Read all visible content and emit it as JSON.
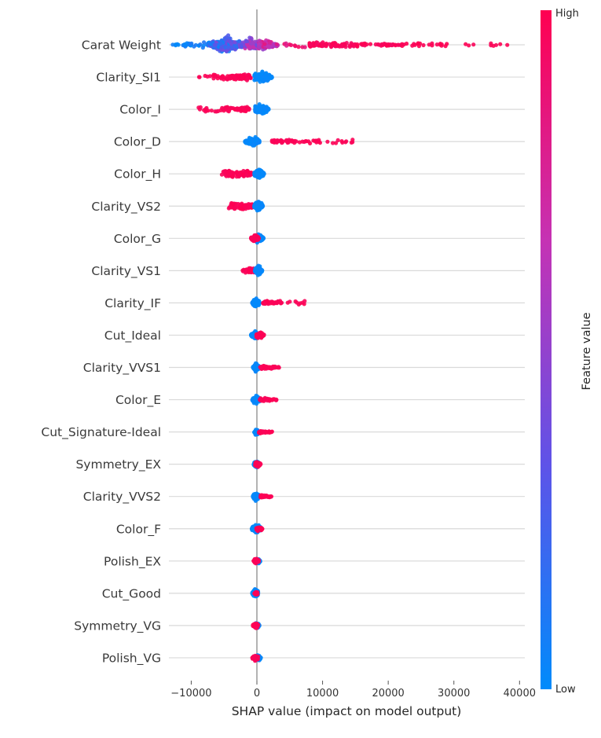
{
  "chart_data": {
    "type": "beeswarm",
    "title": "",
    "xlabel": "SHAP value (impact on model output)",
    "xlim": [
      -13400,
      40800
    ],
    "xticks": [
      {
        "v": -10000,
        "label": "−10000"
      },
      {
        "v": 0,
        "label": "0"
      },
      {
        "v": 10000,
        "label": "10000"
      },
      {
        "v": 20000,
        "label": "20000"
      },
      {
        "v": 30000,
        "label": "30000"
      },
      {
        "v": 40000,
        "label": "40000"
      }
    ],
    "grid": true,
    "legend_position": "right-colorbar",
    "colorbar": {
      "label": "Feature value",
      "high_label": "High",
      "low_label": "Low"
    },
    "colors": {
      "low": "#008bfb",
      "high": "#ff0051",
      "grid": "#d9d9d9",
      "zero_line": "#b3b3b3",
      "text": "#333333",
      "background": "#ffffff"
    },
    "color_stops": [
      [
        0.0,
        "#008bfb"
      ],
      [
        0.33,
        "#5e53e8"
      ],
      [
        0.66,
        "#c532b4"
      ],
      [
        1.0,
        "#ff0051"
      ]
    ],
    "features": [
      {
        "name": "Carat Weight",
        "groups": [
          {
            "x0": -13000,
            "x1": -7000,
            "n": 40,
            "spread": 5,
            "shape": "violin",
            "peak": 0.8,
            "skew": 0.8,
            "t0": 0.0,
            "t1": 0.12
          },
          {
            "x0": -7200,
            "x1": -1800,
            "n": 220,
            "spread": 13,
            "shape": "violin",
            "peak": 0.5,
            "skew": 1,
            "t0": 0.02,
            "t1": 0.45
          },
          {
            "x0": -1800,
            "x1": 500,
            "n": 120,
            "spread": 11,
            "shape": "violin",
            "peak": 0.4,
            "skew": 1,
            "t0": 0.35,
            "t1": 0.7
          },
          {
            "x0": 300,
            "x1": 3200,
            "n": 110,
            "spread": 9,
            "shape": "violin",
            "peak": 0.3,
            "skew": 1.3,
            "t0": 0.5,
            "t1": 0.85
          },
          {
            "x0": 3500,
            "x1": 7800,
            "n": 10,
            "spread": 3,
            "shape": "line",
            "skew": 1,
            "t0": 0.8,
            "t1": 0.95
          },
          {
            "x0": 8000,
            "x1": 22000,
            "n": 130,
            "spread": 4.5,
            "shape": "violin",
            "peak": 0.25,
            "skew": 1.6,
            "t0": 0.93,
            "t1": 1.0
          },
          {
            "x0": 22000,
            "x1": 38500,
            "n": 32,
            "spread": 2,
            "shape": "line",
            "skew": 1.4,
            "t0": 0.97,
            "t1": 1.0
          }
        ]
      },
      {
        "name": "Clarity_SI1",
        "groups": [
          {
            "x0": -9200,
            "x1": -2600,
            "n": 45,
            "spread": 3,
            "shape": "line",
            "skew": 0.55,
            "t0": 0.96,
            "t1": 1.0
          },
          {
            "x0": -2800,
            "x1": -900,
            "n": 70,
            "spread": 6,
            "shape": "violin",
            "peak": 0.6,
            "t0": 0.96,
            "t1": 1.0
          },
          {
            "x0": -400,
            "x1": 2300,
            "n": 150,
            "spread": 9,
            "shape": "violin",
            "peak": 0.35,
            "t0": 0.0,
            "t1": 0.04
          }
        ]
      },
      {
        "name": "Color_I",
        "groups": [
          {
            "x0": -9800,
            "x1": -3200,
            "n": 30,
            "spread": 3,
            "shape": "line",
            "skew": 0.55,
            "t0": 0.96,
            "t1": 1.0
          },
          {
            "x0": -3400,
            "x1": -1100,
            "n": 55,
            "spread": 5,
            "shape": "violin",
            "peak": 0.6,
            "t0": 0.96,
            "t1": 1.0
          },
          {
            "x0": -300,
            "x1": 1800,
            "n": 130,
            "spread": 8.5,
            "shape": "violin",
            "peak": 0.35,
            "t0": 0.0,
            "t1": 0.04
          }
        ]
      },
      {
        "name": "Color_D",
        "groups": [
          {
            "x0": -1800,
            "x1": 400,
            "n": 130,
            "spread": 8.5,
            "shape": "violin",
            "peak": 0.55,
            "t0": 0.0,
            "t1": 0.04
          },
          {
            "x0": 2300,
            "x1": 8000,
            "n": 45,
            "spread": 4,
            "shape": "violin",
            "peak": 0.3,
            "skew": 1.2,
            "t0": 0.96,
            "t1": 1.0
          },
          {
            "x0": 8000,
            "x1": 14600,
            "n": 22,
            "spread": 2.5,
            "shape": "line",
            "skew": 1.2,
            "t0": 0.96,
            "t1": 1.0
          }
        ]
      },
      {
        "name": "Color_H",
        "groups": [
          {
            "x0": -5700,
            "x1": -2400,
            "n": 45,
            "spread": 4,
            "shape": "line",
            "skew": 0.6,
            "t0": 0.96,
            "t1": 1.0
          },
          {
            "x0": -2600,
            "x1": -800,
            "n": 60,
            "spread": 6,
            "shape": "violin",
            "peak": 0.6,
            "t0": 0.96,
            "t1": 1.0
          },
          {
            "x0": -400,
            "x1": 1100,
            "n": 130,
            "spread": 8.5,
            "shape": "violin",
            "peak": 0.4,
            "t0": 0.0,
            "t1": 0.04
          }
        ]
      },
      {
        "name": "Clarity_VS2",
        "groups": [
          {
            "x0": -4700,
            "x1": -1900,
            "n": 50,
            "spread": 4,
            "shape": "line",
            "skew": 0.6,
            "t0": 0.96,
            "t1": 1.0
          },
          {
            "x0": -2100,
            "x1": -600,
            "n": 55,
            "spread": 6,
            "shape": "violin",
            "peak": 0.6,
            "t0": 0.96,
            "t1": 1.0
          },
          {
            "x0": -400,
            "x1": 900,
            "n": 130,
            "spread": 8.5,
            "shape": "violin",
            "peak": 0.45,
            "t0": 0.0,
            "t1": 0.04
          }
        ]
      },
      {
        "name": "Color_G",
        "groups": [
          {
            "x0": -400,
            "x1": 1000,
            "n": 110,
            "spread": 7.5,
            "shape": "violin",
            "peak": 0.4,
            "t0": 0.0,
            "t1": 0.04
          },
          {
            "x0": -900,
            "x1": 300,
            "n": 80,
            "spread": 6.5,
            "shape": "violin",
            "peak": 0.5,
            "t0": 0.96,
            "t1": 1.0
          }
        ]
      },
      {
        "name": "Clarity_VS1",
        "groups": [
          {
            "x0": -2200,
            "x1": -300,
            "n": 55,
            "spread": 5,
            "shape": "violin",
            "peak": 0.65,
            "skew": 0.8,
            "t0": 0.96,
            "t1": 1.0
          },
          {
            "x0": -300,
            "x1": 800,
            "n": 120,
            "spread": 8,
            "shape": "violin",
            "peak": 0.45,
            "t0": 0.0,
            "t1": 0.04
          }
        ]
      },
      {
        "name": "Clarity_IF",
        "groups": [
          {
            "x0": -700,
            "x1": 400,
            "n": 120,
            "spread": 8,
            "shape": "violin",
            "peak": 0.5,
            "t0": 0.0,
            "t1": 0.04
          },
          {
            "x0": 900,
            "x1": 3200,
            "n": 40,
            "spread": 4,
            "shape": "violin",
            "peak": 0.4,
            "skew": 1.2,
            "t0": 0.96,
            "t1": 1.0
          },
          {
            "x0": 3200,
            "x1": 7300,
            "n": 16,
            "spread": 2.5,
            "shape": "line",
            "skew": 1.3,
            "t0": 0.96,
            "t1": 1.0
          }
        ]
      },
      {
        "name": "Cut_Ideal",
        "groups": [
          {
            "x0": -900,
            "x1": 200,
            "n": 100,
            "spread": 6.5,
            "shape": "violin",
            "peak": 0.6,
            "t0": 0.0,
            "t1": 0.04
          },
          {
            "x0": -100,
            "x1": 1100,
            "n": 80,
            "spread": 6,
            "shape": "violin",
            "peak": 0.4,
            "t0": 0.96,
            "t1": 1.0
          }
        ]
      },
      {
        "name": "Clarity_VVS1",
        "groups": [
          {
            "x0": -600,
            "x1": 400,
            "n": 110,
            "spread": 7,
            "shape": "violin",
            "peak": 0.5,
            "t0": 0.0,
            "t1": 0.04
          },
          {
            "x0": 500,
            "x1": 3400,
            "n": 40,
            "spread": 3.5,
            "shape": "violin",
            "peak": 0.3,
            "skew": 1.3,
            "t0": 0.96,
            "t1": 1.0
          }
        ]
      },
      {
        "name": "Color_E",
        "groups": [
          {
            "x0": -700,
            "x1": 600,
            "n": 110,
            "spread": 7,
            "shape": "violin",
            "peak": 0.5,
            "t0": 0.0,
            "t1": 0.04
          },
          {
            "x0": 400,
            "x1": 3000,
            "n": 40,
            "spread": 3.5,
            "shape": "violin",
            "peak": 0.3,
            "skew": 1.3,
            "t0": 0.96,
            "t1": 1.0
          }
        ]
      },
      {
        "name": "Cut_Signature-Ideal",
        "groups": [
          {
            "x0": -400,
            "x1": 300,
            "n": 90,
            "spread": 5.5,
            "shape": "violin",
            "peak": 0.5,
            "t0": 0.0,
            "t1": 0.04
          },
          {
            "x0": 300,
            "x1": 2400,
            "n": 35,
            "spread": 3,
            "shape": "violin",
            "peak": 0.3,
            "skew": 1.3,
            "t0": 0.96,
            "t1": 1.0
          }
        ]
      },
      {
        "name": "Symmetry_EX",
        "groups": [
          {
            "x0": -500,
            "x1": 400,
            "n": 90,
            "spread": 6,
            "shape": "violin",
            "peak": 0.5,
            "t0": 0.0,
            "t1": 0.04
          },
          {
            "x0": -300,
            "x1": 600,
            "n": 60,
            "spread": 5,
            "shape": "violin",
            "peak": 0.45,
            "t0": 0.96,
            "t1": 1.0
          }
        ]
      },
      {
        "name": "Clarity_VVS2",
        "groups": [
          {
            "x0": -600,
            "x1": 400,
            "n": 100,
            "spread": 7,
            "shape": "violin",
            "peak": 0.5,
            "t0": 0.0,
            "t1": 0.04
          },
          {
            "x0": 500,
            "x1": 2200,
            "n": 30,
            "spread": 3,
            "shape": "violin",
            "peak": 0.3,
            "skew": 1.2,
            "t0": 0.96,
            "t1": 1.0
          }
        ]
      },
      {
        "name": "Color_F",
        "groups": [
          {
            "x0": -800,
            "x1": 700,
            "n": 110,
            "spread": 7.5,
            "shape": "violin",
            "peak": 0.5,
            "t0": 0.0,
            "t1": 0.04
          },
          {
            "x0": -100,
            "x1": 900,
            "n": 50,
            "spread": 4,
            "shape": "violin",
            "peak": 0.4,
            "t0": 0.96,
            "t1": 1.0
          }
        ]
      },
      {
        "name": "Polish_EX",
        "groups": [
          {
            "x0": -200,
            "x1": 500,
            "n": 80,
            "spread": 5.5,
            "shape": "violin",
            "peak": 0.45,
            "t0": 0.0,
            "t1": 0.04
          },
          {
            "x0": -500,
            "x1": 300,
            "n": 60,
            "spread": 5.5,
            "shape": "violin",
            "peak": 0.55,
            "t0": 0.96,
            "t1": 1.0
          }
        ]
      },
      {
        "name": "Cut_Good",
        "groups": [
          {
            "x0": -700,
            "x1": 200,
            "n": 110,
            "spread": 8,
            "shape": "violin",
            "peak": 0.6,
            "t0": 0.0,
            "t1": 0.04
          },
          {
            "x0": -400,
            "x1": 200,
            "n": 30,
            "spread": 4,
            "shape": "violin",
            "peak": 0.5,
            "t0": 0.96,
            "t1": 1.0
          }
        ]
      },
      {
        "name": "Symmetry_VG",
        "groups": [
          {
            "x0": -300,
            "x1": 400,
            "n": 70,
            "spread": 5,
            "shape": "violin",
            "peak": 0.5,
            "t0": 0.0,
            "t1": 0.04
          },
          {
            "x0": -600,
            "x1": 200,
            "n": 55,
            "spread": 5,
            "shape": "violin",
            "peak": 0.6,
            "t0": 0.96,
            "t1": 1.0
          }
        ]
      },
      {
        "name": "Polish_VG",
        "groups": [
          {
            "x0": -300,
            "x1": 600,
            "n": 80,
            "spread": 6,
            "shape": "violin",
            "peak": 0.45,
            "t0": 0.0,
            "t1": 0.04
          },
          {
            "x0": -700,
            "x1": 200,
            "n": 55,
            "spread": 5,
            "shape": "violin",
            "peak": 0.6,
            "t0": 0.96,
            "t1": 1.0
          }
        ]
      }
    ]
  }
}
